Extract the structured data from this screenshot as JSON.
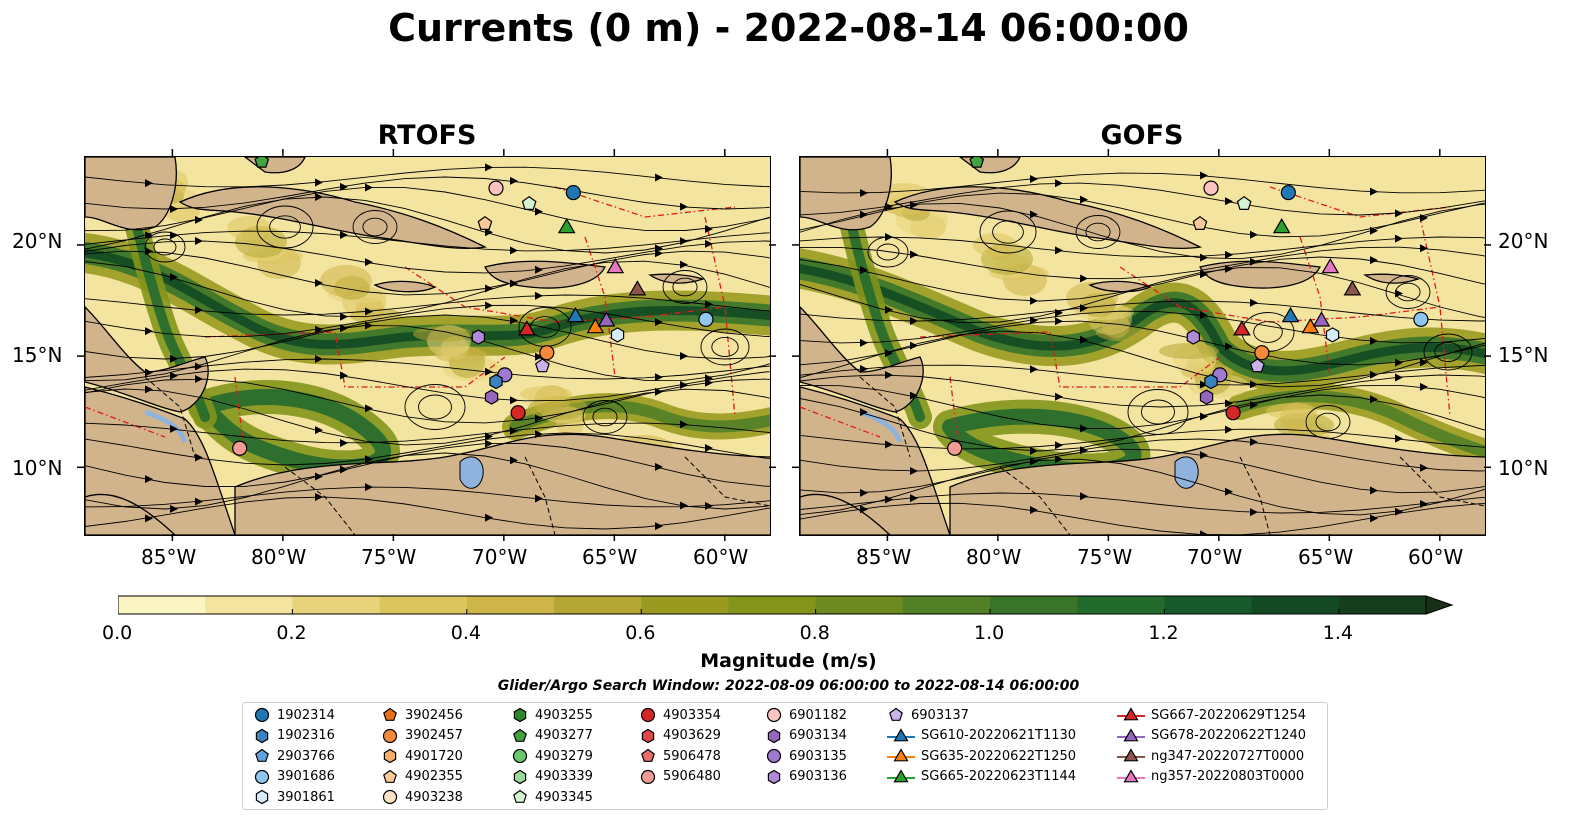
{
  "title": "Currents (0 m) - 2022-08-14 06:00:00",
  "panels": [
    {
      "title": "RTOFS"
    },
    {
      "title": "GOFS"
    }
  ],
  "axes": {
    "y_ticks": [
      "20°N",
      "15°N",
      "10°N"
    ],
    "x_ticks": [
      "85°W",
      "80°W",
      "75°W",
      "70°W",
      "65°W",
      "60°W"
    ]
  },
  "colorbar": {
    "label": "Magnitude (m/s)",
    "ticks": [
      "0.0",
      "0.2",
      "0.4",
      "0.6",
      "0.8",
      "1.0",
      "1.2",
      "1.4"
    ],
    "range": [
      0,
      1.5
    ],
    "colors": [
      "#fbf5c4",
      "#f3e4a0",
      "#e8d37c",
      "#dcc55e",
      "#cdb54a",
      "#b4a733",
      "#9a9a20",
      "#83931b",
      "#6c8a1f",
      "#518026",
      "#39742a",
      "#236a2d",
      "#17592a",
      "#134a24",
      "#173d1f",
      "#1a2f17"
    ],
    "extend": "max"
  },
  "search_window": "Glider/Argo Search Window: 2022-08-09 06:00:00 to 2022-08-14 06:00:00",
  "legend": {
    "columns": [
      [
        {
          "label": "1902314",
          "marker": "circle",
          "color": "#1f77b4"
        },
        {
          "label": "1902316",
          "marker": "hexagon",
          "color": "#3a82c0"
        },
        {
          "label": "2903766",
          "marker": "pentagon",
          "color": "#5fa2dd"
        },
        {
          "label": "3901686",
          "marker": "circle",
          "color": "#8ec6ee"
        },
        {
          "label": "3901861",
          "marker": "hexagon",
          "color": "#d6ecfb"
        }
      ],
      [
        {
          "label": "3902456",
          "marker": "pentagon",
          "color": "#e8701a"
        },
        {
          "label": "3902457",
          "marker": "circle",
          "color": "#f58a3a"
        },
        {
          "label": "4901720",
          "marker": "hexagon",
          "color": "#f7ae6a"
        },
        {
          "label": "4902355",
          "marker": "pentagon",
          "color": "#fbc99a"
        },
        {
          "label": "4903238",
          "marker": "circle",
          "color": "#fde1c4"
        }
      ],
      [
        {
          "label": "4903255",
          "marker": "hexagon",
          "color": "#2a8a2a"
        },
        {
          "label": "4903277",
          "marker": "pentagon",
          "color": "#43a343"
        },
        {
          "label": "4903279",
          "marker": "circle",
          "color": "#6ac76a"
        },
        {
          "label": "4903339",
          "marker": "hexagon",
          "color": "#9ad99a"
        },
        {
          "label": "4903345",
          "marker": "pentagon",
          "color": "#d4f3d0"
        }
      ],
      [
        {
          "label": "4903354",
          "marker": "circle",
          "color": "#d62728"
        },
        {
          "label": "4903629",
          "marker": "hexagon",
          "color": "#e0474b"
        },
        {
          "label": "5906478",
          "marker": "pentagon",
          "color": "#e86d6d"
        },
        {
          "label": "5906480",
          "marker": "circle",
          "color": "#f29a94"
        }
      ],
      [
        {
          "label": "6901182",
          "marker": "circle",
          "color": "#fbc4c0"
        },
        {
          "label": "6903134",
          "marker": "hexagon",
          "color": "#9467bd"
        },
        {
          "label": "6903135",
          "marker": "circle",
          "color": "#a07ad0"
        },
        {
          "label": "6903136",
          "marker": "hexagon",
          "color": "#b08ad8"
        }
      ],
      [
        {
          "label": "6903137",
          "marker": "pentagon",
          "color": "#c9b3ea"
        },
        {
          "label": "SG610-20220621T1130",
          "marker": "triangle",
          "color": "#1f77b4"
        },
        {
          "label": "SG635-20220622T1250",
          "marker": "triangle",
          "color": "#ff7f0e"
        },
        {
          "label": "SG665-20220623T1144",
          "marker": "triangle",
          "color": "#2ca02c"
        }
      ],
      [
        {
          "label": "SG667-20220629T1254",
          "marker": "triangle",
          "color": "#d62728"
        },
        {
          "label": "SG678-20220622T1240",
          "marker": "triangle",
          "color": "#9467bd"
        },
        {
          "label": "ng347-20220727T0000",
          "marker": "triangle",
          "color": "#8c564b"
        },
        {
          "label": "ng357-20220803T0000",
          "marker": "triangle",
          "color": "#e377c2"
        }
      ]
    ]
  },
  "map_extent": {
    "lon": [
      -89,
      -58
    ],
    "lat": [
      7,
      24
    ]
  },
  "platforms": {
    "rtofs": [
      {
        "id": "1902314",
        "lon": -66.9,
        "lat": 22.4
      },
      {
        "id": "4903345",
        "lon": -68.9,
        "lat": 21.9
      },
      {
        "id": "6901182",
        "lon": -70.4,
        "lat": 22.6
      },
      {
        "id": "4902355",
        "lon": -70.9,
        "lat": 21.0
      },
      {
        "id": "SG665-20220623T1144",
        "lon": -67.2,
        "lat": 20.8
      },
      {
        "id": "ng357-20220803T0000",
        "lon": -65.0,
        "lat": 19.0
      },
      {
        "id": "ng347-20220727T0000",
        "lon": -64.0,
        "lat": 18.0
      },
      {
        "id": "SG610-20220621T1130",
        "lon": -66.8,
        "lat": 16.8
      },
      {
        "id": "SG635-20220622T1250",
        "lon": -65.9,
        "lat": 16.3
      },
      {
        "id": "SG678-20220622T1240",
        "lon": -65.4,
        "lat": 16.6
      },
      {
        "id": "3901861",
        "lon": -64.9,
        "lat": 16.0
      },
      {
        "id": "3901686",
        "lon": -60.9,
        "lat": 16.7
      },
      {
        "id": "SG667-20220629T1254",
        "lon": -69.0,
        "lat": 16.2
      },
      {
        "id": "3902457",
        "lon": -68.1,
        "lat": 15.2
      },
      {
        "id": "6903137",
        "lon": -68.3,
        "lat": 14.6
      },
      {
        "id": "6903136",
        "lon": -71.2,
        "lat": 15.9
      },
      {
        "id": "6903135",
        "lon": -70.0,
        "lat": 14.2
      },
      {
        "id": "1902316",
        "lon": -70.4,
        "lat": 13.9
      },
      {
        "id": "6903134",
        "lon": -70.6,
        "lat": 13.2
      },
      {
        "id": "4903354",
        "lon": -69.4,
        "lat": 12.5
      },
      {
        "id": "5906480",
        "lon": -82.0,
        "lat": 10.9
      },
      {
        "id": "4903277",
        "lon": -81.0,
        "lat": 23.8
      }
    ],
    "gofs": [
      {
        "id": "1902314",
        "lon": -66.9,
        "lat": 22.4
      },
      {
        "id": "4903345",
        "lon": -68.9,
        "lat": 21.9
      },
      {
        "id": "6901182",
        "lon": -70.4,
        "lat": 22.6
      },
      {
        "id": "4902355",
        "lon": -70.9,
        "lat": 21.0
      },
      {
        "id": "SG665-20220623T1144",
        "lon": -67.2,
        "lat": 20.8
      },
      {
        "id": "ng357-20220803T0000",
        "lon": -65.0,
        "lat": 19.0
      },
      {
        "id": "ng347-20220727T0000",
        "lon": -64.0,
        "lat": 18.0
      },
      {
        "id": "SG610-20220621T1130",
        "lon": -66.8,
        "lat": 16.8
      },
      {
        "id": "SG635-20220622T1250",
        "lon": -65.9,
        "lat": 16.3
      },
      {
        "id": "SG678-20220622T1240",
        "lon": -65.4,
        "lat": 16.6
      },
      {
        "id": "3901861",
        "lon": -64.9,
        "lat": 16.0
      },
      {
        "id": "3901686",
        "lon": -60.9,
        "lat": 16.7
      },
      {
        "id": "SG667-20220629T1254",
        "lon": -69.0,
        "lat": 16.2
      },
      {
        "id": "3902457",
        "lon": -68.1,
        "lat": 15.2
      },
      {
        "id": "6903137",
        "lon": -68.3,
        "lat": 14.6
      },
      {
        "id": "6903136",
        "lon": -71.2,
        "lat": 15.9
      },
      {
        "id": "6903135",
        "lon": -70.0,
        "lat": 14.2
      },
      {
        "id": "1902316",
        "lon": -70.4,
        "lat": 13.9
      },
      {
        "id": "6903134",
        "lon": -70.6,
        "lat": 13.2
      },
      {
        "id": "4903354",
        "lon": -69.4,
        "lat": 12.5
      },
      {
        "id": "5906480",
        "lon": -82.0,
        "lat": 10.9
      },
      {
        "id": "4903277",
        "lon": -81.0,
        "lat": 23.8
      }
    ]
  }
}
